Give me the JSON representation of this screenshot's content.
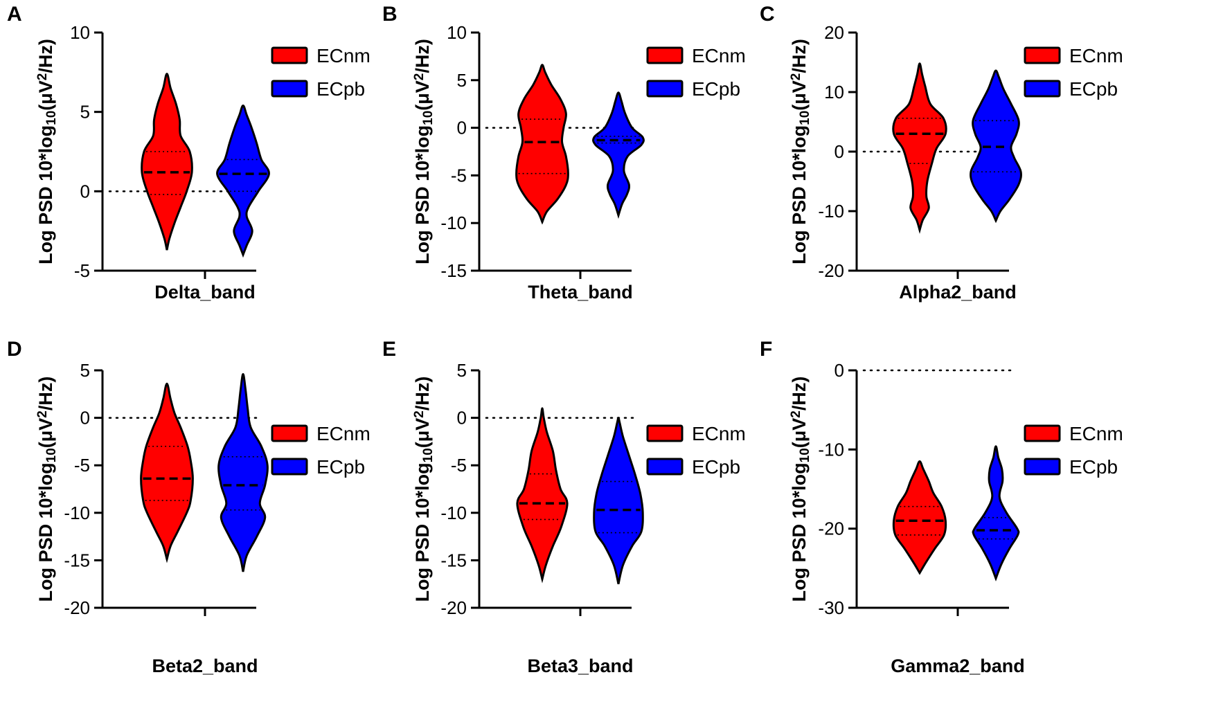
{
  "colors": {
    "ECnm": "#ff0000",
    "ECpb": "#0000ff"
  },
  "chart_data": [
    {
      "type": "violin",
      "panel": "A",
      "xlabel": "Delta_band",
      "ylabel_parts": [
        "Log PSD 10*log",
        "10",
        "(μV",
        "2",
        "/Hz)"
      ],
      "ylim": [
        -5,
        10
      ],
      "yticks": [
        10,
        5,
        0,
        -5
      ],
      "reference_line": 0,
      "legend": {
        "entries": [
          "ECnm",
          "ECpb"
        ],
        "placement": "top-right"
      },
      "series": [
        {
          "name": "ECnm",
          "min": -3.7,
          "q1": -0.2,
          "median": 1.2,
          "q3": 2.5,
          "max": 7.4,
          "density": [
            [
              -3.7,
              0.0
            ],
            [
              -3.0,
              0.08
            ],
            [
              -2.0,
              0.25
            ],
            [
              -1.0,
              0.45
            ],
            [
              0.0,
              0.65
            ],
            [
              1.2,
              0.82
            ],
            [
              2.5,
              0.75
            ],
            [
              3.5,
              0.45
            ],
            [
              4.5,
              0.42
            ],
            [
              5.5,
              0.3
            ],
            [
              6.5,
              0.12
            ],
            [
              7.4,
              0.0
            ]
          ]
        },
        {
          "name": "ECpb",
          "min": -4.0,
          "q1": 0.0,
          "median": 1.1,
          "q3": 2.0,
          "max": 5.4,
          "density": [
            [
              -4.0,
              0.0
            ],
            [
              -3.4,
              0.12
            ],
            [
              -2.5,
              0.3
            ],
            [
              -1.6,
              0.12
            ],
            [
              -1.0,
              0.18
            ],
            [
              0.0,
              0.5
            ],
            [
              1.1,
              0.85
            ],
            [
              2.0,
              0.6
            ],
            [
              3.0,
              0.45
            ],
            [
              4.0,
              0.28
            ],
            [
              4.8,
              0.12
            ],
            [
              5.4,
              0.0
            ]
          ]
        }
      ]
    },
    {
      "type": "violin",
      "panel": "B",
      "xlabel": "Theta_band",
      "ylabel_parts": [
        "Log PSD 10*log",
        "10",
        "(μV",
        "2",
        "/Hz)"
      ],
      "ylim": [
        -15,
        10
      ],
      "yticks": [
        10,
        5,
        0,
        -5,
        -10,
        -15
      ],
      "reference_line": 0,
      "legend": {
        "entries": [
          "ECnm",
          "ECpb"
        ],
        "placement": "top-right"
      },
      "series": [
        {
          "name": "ECnm",
          "min": -9.9,
          "q1": -4.8,
          "median": -1.5,
          "q3": 0.9,
          "max": 6.6,
          "density": [
            [
              -9.9,
              0.0
            ],
            [
              -8.8,
              0.15
            ],
            [
              -7.5,
              0.5
            ],
            [
              -6.0,
              0.78
            ],
            [
              -4.8,
              0.85
            ],
            [
              -3.0,
              0.78
            ],
            [
              -1.5,
              0.65
            ],
            [
              0.0,
              0.7
            ],
            [
              1.5,
              0.78
            ],
            [
              3.0,
              0.6
            ],
            [
              4.5,
              0.3
            ],
            [
              5.8,
              0.1
            ],
            [
              6.6,
              0.0
            ]
          ]
        },
        {
          "name": "ECpb",
          "min": -9.2,
          "q1": -1.6,
          "median": -1.3,
          "q3": -0.9,
          "max": 3.7,
          "density": [
            [
              -9.2,
              0.0
            ],
            [
              -8.0,
              0.12
            ],
            [
              -7.0,
              0.28
            ],
            [
              -6.0,
              0.35
            ],
            [
              -4.5,
              0.18
            ],
            [
              -3.0,
              0.3
            ],
            [
              -1.8,
              0.75
            ],
            [
              -1.0,
              0.8
            ],
            [
              0.0,
              0.45
            ],
            [
              1.5,
              0.22
            ],
            [
              2.8,
              0.1
            ],
            [
              3.7,
              0.0
            ]
          ]
        }
      ]
    },
    {
      "type": "violin",
      "panel": "C",
      "xlabel": "Alpha2_band",
      "ylabel_parts": [
        "Log PSD 10*log",
        "10",
        "(μV",
        "2",
        "/Hz)"
      ],
      "ylim": [
        -20,
        20
      ],
      "yticks": [
        20,
        10,
        0,
        -10,
        -20
      ],
      "reference_line": 0,
      "legend": {
        "entries": [
          "ECnm",
          "ECpb"
        ],
        "placement": "top-right"
      },
      "series": [
        {
          "name": "ECnm",
          "min": -13.2,
          "q1": -2.0,
          "median": 3.0,
          "q3": 5.6,
          "max": 14.8,
          "density": [
            [
              -13.2,
              0.0
            ],
            [
              -11.5,
              0.1
            ],
            [
              -9.5,
              0.3
            ],
            [
              -7.5,
              0.22
            ],
            [
              -5.0,
              0.25
            ],
            [
              -2.0,
              0.4
            ],
            [
              0.5,
              0.55
            ],
            [
              3.0,
              0.85
            ],
            [
              5.6,
              0.78
            ],
            [
              8.0,
              0.35
            ],
            [
              11.0,
              0.18
            ],
            [
              13.0,
              0.08
            ],
            [
              14.8,
              0.0
            ]
          ]
        },
        {
          "name": "ECpb",
          "min": -11.6,
          "q1": -3.4,
          "median": 0.8,
          "q3": 5.2,
          "max": 13.6,
          "density": [
            [
              -11.6,
              0.0
            ],
            [
              -10.0,
              0.15
            ],
            [
              -8.0,
              0.45
            ],
            [
              -5.5,
              0.75
            ],
            [
              -3.4,
              0.82
            ],
            [
              -1.0,
              0.6
            ],
            [
              0.8,
              0.5
            ],
            [
              3.0,
              0.68
            ],
            [
              5.2,
              0.75
            ],
            [
              8.0,
              0.5
            ],
            [
              10.5,
              0.25
            ],
            [
              12.5,
              0.1
            ],
            [
              13.6,
              0.0
            ]
          ]
        }
      ]
    },
    {
      "type": "violin",
      "panel": "D",
      "xlabel": "Beta2_band",
      "ylabel_parts": [
        "Log PSD 10*log",
        "10",
        "(μV",
        "2",
        "/Hz)"
      ],
      "ylim": [
        -20,
        5
      ],
      "yticks": [
        5,
        0,
        -5,
        -10,
        -15,
        -20
      ],
      "reference_line": 0,
      "legend": {
        "entries": [
          "ECnm",
          "ECpb"
        ],
        "placement": "top-right"
      },
      "series": [
        {
          "name": "ECnm",
          "min": -14.9,
          "q1": -8.7,
          "median": -6.4,
          "q3": -3.0,
          "max": 3.6,
          "density": [
            [
              -14.9,
              0.0
            ],
            [
              -13.5,
              0.12
            ],
            [
              -12.0,
              0.35
            ],
            [
              -10.0,
              0.65
            ],
            [
              -8.7,
              0.78
            ],
            [
              -6.4,
              0.85
            ],
            [
              -4.5,
              0.78
            ],
            [
              -3.0,
              0.68
            ],
            [
              -1.0,
              0.45
            ],
            [
              0.5,
              0.25
            ],
            [
              2.0,
              0.12
            ],
            [
              3.6,
              0.0
            ]
          ]
        },
        {
          "name": "ECpb",
          "min": -16.2,
          "q1": -9.7,
          "median": -7.1,
          "q3": -4.1,
          "max": 4.6,
          "density": [
            [
              -16.2,
              0.0
            ],
            [
              -14.5,
              0.12
            ],
            [
              -12.5,
              0.45
            ],
            [
              -10.5,
              0.72
            ],
            [
              -9.0,
              0.55
            ],
            [
              -7.1,
              0.72
            ],
            [
              -5.0,
              0.8
            ],
            [
              -3.0,
              0.6
            ],
            [
              -1.0,
              0.25
            ],
            [
              1.0,
              0.15
            ],
            [
              3.0,
              0.08
            ],
            [
              4.6,
              0.0
            ]
          ]
        }
      ]
    },
    {
      "type": "violin",
      "panel": "E",
      "xlabel": "Beta3_band",
      "ylabel_parts": [
        "Log PSD 10*log",
        "10",
        "(μV",
        "2",
        "/Hz)"
      ],
      "ylim": [
        -20,
        5
      ],
      "yticks": [
        5,
        0,
        -5,
        -10,
        -15,
        -20
      ],
      "reference_line": 0,
      "legend": {
        "entries": [
          "ECnm",
          "ECpb"
        ],
        "placement": "top-right"
      },
      "series": [
        {
          "name": "ECnm",
          "min": -17.0,
          "q1": -10.7,
          "median": -9.0,
          "q3": -5.9,
          "max": 1.0,
          "density": [
            [
              -17.0,
              0.0
            ],
            [
              -15.5,
              0.12
            ],
            [
              -13.5,
              0.35
            ],
            [
              -11.5,
              0.62
            ],
            [
              -9.0,
              0.82
            ],
            [
              -7.5,
              0.6
            ],
            [
              -5.5,
              0.45
            ],
            [
              -3.5,
              0.35
            ],
            [
              -1.5,
              0.15
            ],
            [
              0.0,
              0.05
            ],
            [
              1.0,
              0.0
            ]
          ]
        },
        {
          "name": "ECpb",
          "min": -17.5,
          "q1": -12.1,
          "median": -9.7,
          "q3": -6.7,
          "max": 0.0,
          "density": [
            [
              -17.5,
              0.0
            ],
            [
              -15.5,
              0.15
            ],
            [
              -13.5,
              0.45
            ],
            [
              -12.0,
              0.75
            ],
            [
              -10.0,
              0.8
            ],
            [
              -8.0,
              0.72
            ],
            [
              -6.0,
              0.55
            ],
            [
              -4.0,
              0.35
            ],
            [
              -2.0,
              0.15
            ],
            [
              -0.5,
              0.04
            ],
            [
              0.0,
              0.0
            ]
          ]
        }
      ]
    },
    {
      "type": "violin",
      "panel": "F",
      "xlabel": "Gamma2_band",
      "ylabel_parts": [
        "Log PSD 10*log",
        "10",
        "(μV",
        "2",
        "/Hz)"
      ],
      "ylim": [
        -30,
        0
      ],
      "yticks": [
        0,
        -10,
        -20,
        -30
      ],
      "reference_line": 0,
      "legend": {
        "entries": [
          "ECnm",
          "ECpb"
        ],
        "placement": "top-right"
      },
      "series": [
        {
          "name": "ECnm",
          "min": -25.6,
          "q1": -20.8,
          "median": -19.0,
          "q3": -17.2,
          "max": -11.5,
          "density": [
            [
              -25.6,
              0.0
            ],
            [
              -24.3,
              0.2
            ],
            [
              -22.5,
              0.5
            ],
            [
              -20.8,
              0.8
            ],
            [
              -19.0,
              0.85
            ],
            [
              -17.2,
              0.72
            ],
            [
              -15.5,
              0.45
            ],
            [
              -14.0,
              0.3
            ],
            [
              -12.5,
              0.12
            ],
            [
              -11.5,
              0.0
            ]
          ]
        },
        {
          "name": "ECpb",
          "min": -26.3,
          "q1": -21.3,
          "median": -20.2,
          "q3": -18.6,
          "max": -9.6,
          "density": [
            [
              -26.3,
              0.0
            ],
            [
              -24.5,
              0.18
            ],
            [
              -22.5,
              0.45
            ],
            [
              -20.8,
              0.72
            ],
            [
              -20.0,
              0.7
            ],
            [
              -18.0,
              0.35
            ],
            [
              -16.0,
              0.12
            ],
            [
              -14.0,
              0.22
            ],
            [
              -12.5,
              0.2
            ],
            [
              -11.0,
              0.08
            ],
            [
              -9.6,
              0.0
            ]
          ]
        }
      ]
    }
  ]
}
